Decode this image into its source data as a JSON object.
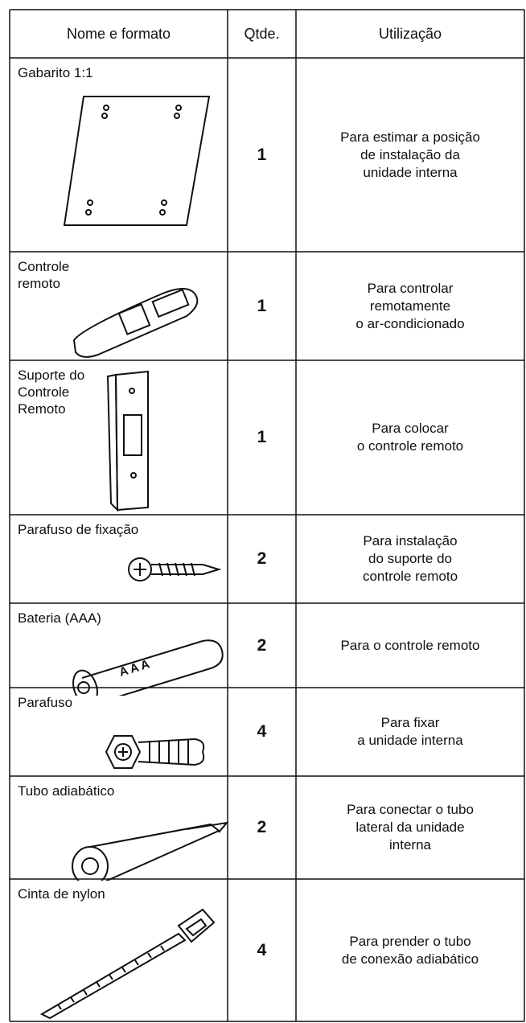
{
  "table": {
    "header": [
      "Nome e formato",
      "Qtde.",
      "Utilização"
    ],
    "rows": [
      {
        "name": [
          "Gabarito 1:1"
        ],
        "qty": 1,
        "use": [
          "Para estimar a posição",
          "de instalação da",
          "unidade interna"
        ]
      },
      {
        "name": [
          "Controle",
          "remoto"
        ],
        "qty": 1,
        "use": [
          "Para controlar",
          "remotamente",
          "o ar-condicionado"
        ]
      },
      {
        "name": [
          "Suporte do",
          "Controle",
          "Remoto"
        ],
        "qty": 1,
        "use": [
          "Para colocar",
          "o controle remoto"
        ]
      },
      {
        "name": [
          "Parafuso de fixação"
        ],
        "qty": 2,
        "use": [
          "Para instalação",
          "do suporte do",
          "controle remoto"
        ]
      },
      {
        "name": [
          "Bateria (AAA)"
        ],
        "qty": 2,
        "use": [
          "Para o controle remoto"
        ],
        "marking": "AAA"
      },
      {
        "name": [
          "Parafuso"
        ],
        "qty": 4,
        "use": [
          "Para fixar",
          "a unidade interna"
        ]
      },
      {
        "name": [
          "Tubo adiabático"
        ],
        "qty": 2,
        "use": [
          "Para conectar o tubo",
          "lateral da unidade",
          "interna"
        ]
      },
      {
        "name": [
          "Cinta de nylon"
        ],
        "qty": 4,
        "use": [
          "Para prender o tubo",
          "de conexão adiabático"
        ]
      }
    ]
  }
}
